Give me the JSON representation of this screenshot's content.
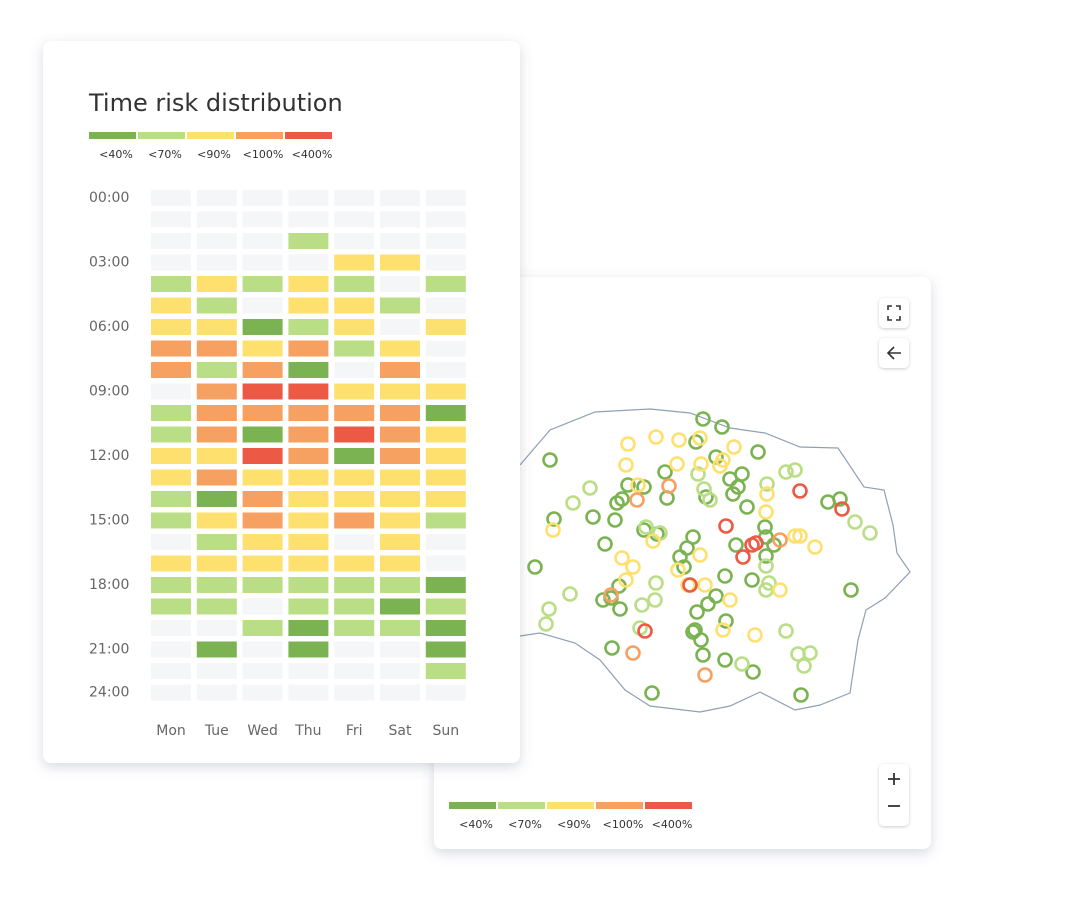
{
  "heatmap": {
    "title": "Time risk distribution",
    "legend": [
      "<40%",
      "<70%",
      "<90%",
      "<100%",
      "<400%"
    ],
    "colors": [
      "#7cb352",
      "#b9de86",
      "#fde06e",
      "#f6a062",
      "#ec5a45"
    ],
    "hour_labels": [
      "00:00",
      "03:00",
      "06:00",
      "09:00",
      "12:00",
      "15:00",
      "18:00",
      "21:00",
      "24:00"
    ],
    "days": [
      "Mon",
      "Tue",
      "Wed",
      "Thu",
      "Fri",
      "Sat",
      "Sun"
    ],
    "cells": [
      [
        null,
        null,
        null,
        null,
        null,
        null,
        null
      ],
      [
        null,
        null,
        null,
        null,
        null,
        null,
        null
      ],
      [
        null,
        null,
        null,
        1,
        null,
        null,
        null
      ],
      [
        null,
        null,
        null,
        null,
        2,
        2,
        null
      ],
      [
        1,
        2,
        1,
        2,
        1,
        null,
        1
      ],
      [
        2,
        1,
        null,
        2,
        2,
        1,
        null
      ],
      [
        2,
        2,
        0,
        1,
        2,
        null,
        2
      ],
      [
        3,
        3,
        2,
        3,
        1,
        2,
        null
      ],
      [
        3,
        1,
        3,
        0,
        null,
        3,
        null
      ],
      [
        null,
        3,
        4,
        4,
        2,
        2,
        2
      ],
      [
        1,
        3,
        3,
        3,
        3,
        3,
        0
      ],
      [
        1,
        3,
        0,
        3,
        4,
        3,
        2
      ],
      [
        2,
        2,
        4,
        3,
        0,
        3,
        2
      ],
      [
        2,
        3,
        2,
        2,
        2,
        2,
        2
      ],
      [
        1,
        0,
        3,
        2,
        2,
        2,
        2
      ],
      [
        1,
        2,
        3,
        2,
        3,
        2,
        1
      ],
      [
        null,
        1,
        2,
        2,
        null,
        2,
        null
      ],
      [
        2,
        2,
        2,
        2,
        2,
        2,
        null
      ],
      [
        1,
        1,
        1,
        1,
        1,
        1,
        0
      ],
      [
        1,
        1,
        null,
        1,
        1,
        0,
        1
      ],
      [
        null,
        null,
        1,
        0,
        1,
        1,
        0
      ],
      [
        null,
        0,
        null,
        0,
        null,
        null,
        0
      ],
      [
        null,
        null,
        null,
        null,
        null,
        null,
        1
      ],
      [
        null,
        null,
        null,
        null,
        null,
        null,
        null
      ]
    ]
  },
  "map": {
    "legend": [
      "<40%",
      "<70%",
      "<90%",
      "<100%",
      "<400%"
    ]
  }
}
